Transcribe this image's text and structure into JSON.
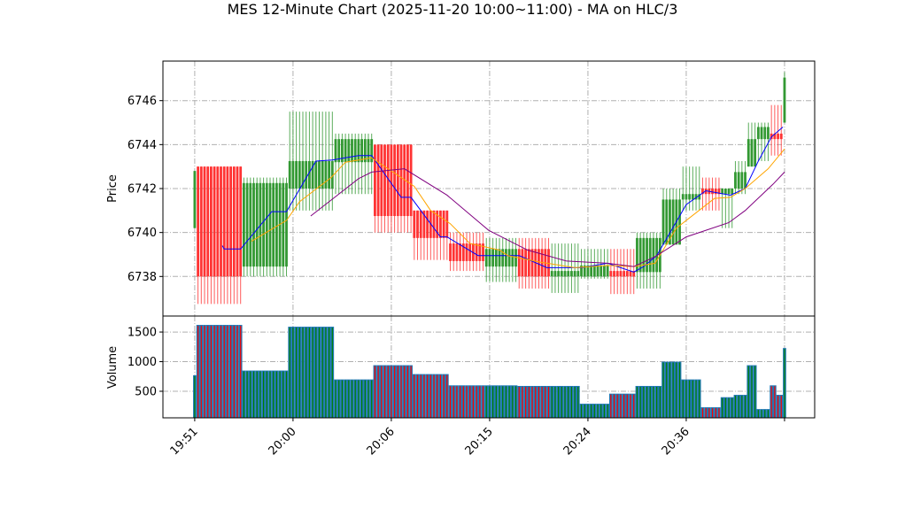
{
  "chart_data": {
    "type": "candlestick",
    "title": "MES 12-Minute Chart (2025-11-20 10:00~11:00) - MA on HLC/3",
    "price_panel": {
      "ylabel": "Price",
      "ylim": [
        6736.2,
        6747.8
      ],
      "yticks": [
        6738,
        6740,
        6742,
        6744,
        6746
      ],
      "grid": true
    },
    "volume_panel": {
      "ylabel": "Volume",
      "ylim": [
        52,
        1770
      ],
      "yticks": [
        500,
        1000,
        1500
      ],
      "grid": true
    },
    "xlim": [
      -9.7,
      189.2
    ],
    "xticks": [
      {
        "index": 0,
        "label": "19:51"
      },
      {
        "index": 30,
        "label": "20:00"
      },
      {
        "index": 60,
        "label": "20:06"
      },
      {
        "index": 90,
        "label": "20:15"
      },
      {
        "index": 120,
        "label": "20:24"
      },
      {
        "index": 150,
        "label": "20:36"
      },
      {
        "index": 180,
        "label": ""
      }
    ],
    "colors": {
      "up": "#339933",
      "down": "#ff3333",
      "volume": "#1f77b4",
      "ma_fast": "#0000ff",
      "ma_mid": "#ffa500",
      "ma_slow": "#800080",
      "grid": "#b0b0b0"
    },
    "blocks": [
      {
        "from": 0,
        "to": 0,
        "open": 6740.2,
        "high": 6742.8,
        "low": 6740.2,
        "close": 6742.8,
        "volume": 770
      },
      {
        "from": 1,
        "to": 14,
        "open": 6743.0,
        "high": 6743.0,
        "low": 6736.75,
        "close": 6738.0,
        "volume": 1620
      },
      {
        "from": 15,
        "to": 28,
        "open": 6738.45,
        "high": 6742.5,
        "low": 6738.0,
        "close": 6742.25,
        "volume": 850
      },
      {
        "from": 29,
        "to": 42,
        "open": 6742.0,
        "high": 6745.5,
        "low": 6741.0,
        "close": 6743.25,
        "volume": 1590
      },
      {
        "from": 43,
        "to": 54,
        "open": 6743.2,
        "high": 6744.5,
        "low": 6741.75,
        "close": 6744.25,
        "volume": 700
      },
      {
        "from": 55,
        "to": 66,
        "open": 6744.0,
        "high": 6744.0,
        "low": 6740.0,
        "close": 6740.75,
        "volume": 940
      },
      {
        "from": 67,
        "to": 77,
        "open": 6741.0,
        "high": 6741.0,
        "low": 6738.75,
        "close": 6739.75,
        "volume": 790
      },
      {
        "from": 78,
        "to": 88,
        "open": 6739.5,
        "high": 6740.0,
        "low": 6738.25,
        "close": 6738.7,
        "volume": 600
      },
      {
        "from": 89,
        "to": 98,
        "open": 6738.45,
        "high": 6739.75,
        "low": 6737.75,
        "close": 6739.25,
        "volume": 600
      },
      {
        "from": 99,
        "to": 108,
        "open": 6739.25,
        "high": 6739.75,
        "low": 6737.45,
        "close": 6738.0,
        "volume": 590
      },
      {
        "from": 109,
        "to": 117,
        "open": 6738.0,
        "high": 6739.5,
        "low": 6737.25,
        "close": 6738.25,
        "volume": 590
      },
      {
        "from": 118,
        "to": 126,
        "open": 6738.0,
        "high": 6739.25,
        "low": 6737.9,
        "close": 6738.5,
        "volume": 290
      },
      {
        "from": 127,
        "to": 134,
        "open": 6738.25,
        "high": 6739.25,
        "low": 6737.2,
        "close": 6738.0,
        "volume": 460
      },
      {
        "from": 135,
        "to": 142,
        "open": 6738.2,
        "high": 6740.0,
        "low": 6737.45,
        "close": 6739.75,
        "volume": 590
      },
      {
        "from": 143,
        "to": 148,
        "open": 6739.45,
        "high": 6742.0,
        "low": 6739.45,
        "close": 6741.5,
        "volume": 1000
      },
      {
        "from": 149,
        "to": 154,
        "open": 6741.5,
        "high": 6743.0,
        "low": 6741.0,
        "close": 6741.75,
        "volume": 700
      },
      {
        "from": 155,
        "to": 160,
        "open": 6742.0,
        "high": 6742.5,
        "low": 6741.0,
        "close": 6741.75,
        "volume": 230
      },
      {
        "from": 161,
        "to": 164,
        "open": 6741.75,
        "high": 6742.0,
        "low": 6740.2,
        "close": 6742.0,
        "volume": 400
      },
      {
        "from": 165,
        "to": 168,
        "open": 6742.0,
        "high": 6743.25,
        "low": 6741.75,
        "close": 6742.75,
        "volume": 440
      },
      {
        "from": 169,
        "to": 171,
        "open": 6743.0,
        "high": 6745.0,
        "low": 6743.0,
        "close": 6744.25,
        "volume": 940
      },
      {
        "from": 172,
        "to": 175,
        "open": 6744.25,
        "high": 6745.0,
        "low": 6743.25,
        "close": 6744.8,
        "volume": 200
      },
      {
        "from": 176,
        "to": 177,
        "open": 6744.5,
        "high": 6745.8,
        "low": 6743.5,
        "close": 6744.25,
        "volume": 600
      },
      {
        "from": 178,
        "to": 179,
        "open": 6744.5,
        "high": 6745.8,
        "low": 6743.5,
        "close": 6744.25,
        "volume": 440
      },
      {
        "from": 180,
        "to": 180,
        "open": 6745.0,
        "high": 6747.3,
        "low": 6745.0,
        "close": 6747.05,
        "volume": 1230
      }
    ],
    "ma_lines": [
      {
        "name": "ma_fast",
        "color": "#0000ff",
        "points": [
          [
            8.4,
            6739.4
          ],
          [
            9,
            6739.25
          ],
          [
            14,
            6739.25
          ],
          [
            23.5,
            6740.95
          ],
          [
            28,
            6740.95
          ],
          [
            37,
            6743.25
          ],
          [
            42,
            6743.3
          ],
          [
            50,
            6743.5
          ],
          [
            54,
            6743.5
          ],
          [
            63,
            6741.6
          ],
          [
            66,
            6741.6
          ],
          [
            75,
            6739.8
          ],
          [
            77,
            6739.8
          ],
          [
            86.5,
            6738.95
          ],
          [
            99,
            6738.95
          ],
          [
            107.5,
            6738.4
          ],
          [
            118,
            6738.4
          ],
          [
            126,
            6738.6
          ],
          [
            134,
            6738.2
          ],
          [
            137,
            6738.45
          ],
          [
            141,
            6738.95
          ],
          [
            150,
            6741.27
          ],
          [
            156,
            6741.9
          ],
          [
            163.5,
            6741.7
          ],
          [
            168,
            6742.0
          ],
          [
            172,
            6743.25
          ],
          [
            176,
            6744.35
          ],
          [
            179.5,
            6744.8
          ]
        ]
      },
      {
        "name": "ma_mid",
        "color": "#ffa500",
        "points": [
          [
            17.3,
            6739.6
          ],
          [
            28,
            6740.55
          ],
          [
            32,
            6741.4
          ],
          [
            41.6,
            6742.5
          ],
          [
            46,
            6743.2
          ],
          [
            54,
            6743.4
          ],
          [
            67,
            6742.1
          ],
          [
            72,
            6741.0
          ],
          [
            78,
            6740.4
          ],
          [
            84,
            6739.5
          ],
          [
            93,
            6739.2
          ],
          [
            95.5,
            6738.95
          ],
          [
            105.5,
            6738.65
          ],
          [
            116,
            6738.4
          ],
          [
            126,
            6738.5
          ],
          [
            134,
            6738.45
          ],
          [
            140.5,
            6738.6
          ],
          [
            147,
            6740.2
          ],
          [
            158.6,
            6741.55
          ],
          [
            163.5,
            6741.6
          ],
          [
            168,
            6742.0
          ],
          [
            175,
            6742.9
          ],
          [
            180,
            6743.8
          ]
        ]
      },
      {
        "name": "ma_slow",
        "color": "#800080",
        "points": [
          [
            35.4,
            6740.75
          ],
          [
            50,
            6742.45
          ],
          [
            54,
            6742.75
          ],
          [
            64,
            6742.9
          ],
          [
            77,
            6741.7
          ],
          [
            89.7,
            6740.1
          ],
          [
            101.6,
            6739.2
          ],
          [
            113.5,
            6738.7
          ],
          [
            126,
            6738.6
          ],
          [
            134,
            6738.45
          ],
          [
            140.5,
            6738.9
          ],
          [
            150,
            6739.8
          ],
          [
            163,
            6740.45
          ],
          [
            168,
            6741.0
          ],
          [
            176.5,
            6742.2
          ],
          [
            180,
            6742.75
          ]
        ]
      }
    ]
  }
}
